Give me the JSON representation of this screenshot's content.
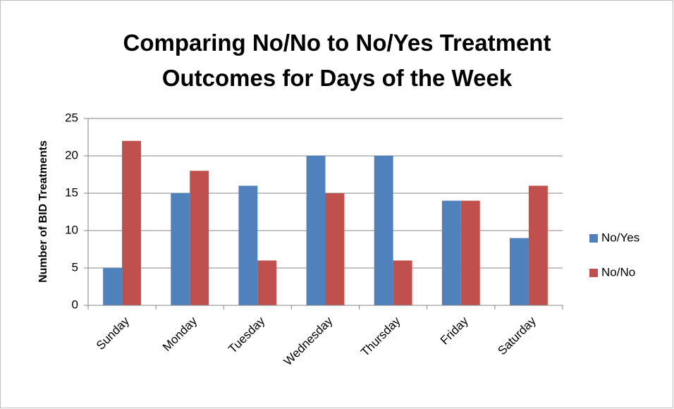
{
  "chart_data": {
    "type": "bar",
    "title": "Comparing No/No to No/Yes Treatment Outcomes for Days of the Week",
    "y_label": "Number of BID Treatments",
    "categories": [
      "Sunday",
      "Monday",
      "Tuesday",
      "Wednesday",
      "Thursday",
      "Friday",
      "Saturday"
    ],
    "series": [
      {
        "name": "No/Yes",
        "color": "#4f81bd",
        "values": [
          5,
          15,
          16,
          20,
          20,
          14,
          9
        ]
      },
      {
        "name": "No/No",
        "color": "#c0504d",
        "values": [
          22,
          18,
          6,
          15,
          6,
          14,
          16
        ]
      }
    ],
    "ylim": [
      0,
      25
    ],
    "yticks": [
      0,
      5,
      10,
      15,
      20,
      25
    ],
    "grid": true,
    "legend": "right"
  }
}
